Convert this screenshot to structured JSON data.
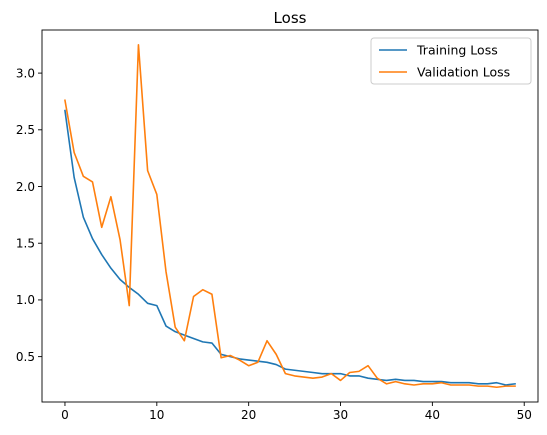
{
  "chart_data": {
    "type": "line",
    "title": "Loss",
    "xlabel": "",
    "ylabel": "",
    "xlim": [
      -2.5,
      51.5
    ],
    "ylim": [
      0.1,
      3.38
    ],
    "xticks": [
      0,
      10,
      20,
      30,
      40,
      50
    ],
    "yticks": [
      0.5,
      1.0,
      1.5,
      2.0,
      2.5,
      3.0
    ],
    "ytick_labels": [
      "0.5",
      "1.0",
      "1.5",
      "2.0",
      "2.5",
      "3.0"
    ],
    "grid": false,
    "legend": "top-right",
    "x": [
      0,
      1,
      2,
      3,
      4,
      5,
      6,
      7,
      8,
      9,
      10,
      11,
      12,
      13,
      14,
      15,
      16,
      17,
      18,
      19,
      20,
      21,
      22,
      23,
      24,
      25,
      26,
      27,
      28,
      29,
      30,
      31,
      32,
      33,
      34,
      35,
      36,
      37,
      38,
      39,
      40,
      41,
      42,
      43,
      44,
      45,
      46,
      47,
      48,
      49
    ],
    "series": [
      {
        "name": "Training Loss",
        "color": "#1f77b4",
        "values": [
          2.67,
          2.08,
          1.73,
          1.54,
          1.4,
          1.28,
          1.18,
          1.11,
          1.05,
          0.97,
          0.95,
          0.77,
          0.72,
          0.69,
          0.66,
          0.63,
          0.62,
          0.52,
          0.5,
          0.48,
          0.47,
          0.46,
          0.45,
          0.43,
          0.39,
          0.38,
          0.37,
          0.36,
          0.35,
          0.35,
          0.35,
          0.33,
          0.33,
          0.31,
          0.3,
          0.29,
          0.3,
          0.29,
          0.29,
          0.28,
          0.28,
          0.28,
          0.27,
          0.27,
          0.27,
          0.26,
          0.26,
          0.27,
          0.25,
          0.26
        ]
      },
      {
        "name": "Validation Loss",
        "color": "#ff7f0e",
        "values": [
          2.76,
          2.3,
          2.09,
          2.04,
          1.64,
          1.91,
          1.53,
          0.95,
          3.25,
          2.14,
          1.93,
          1.25,
          0.76,
          0.64,
          1.03,
          1.09,
          1.05,
          0.49,
          0.51,
          0.47,
          0.42,
          0.45,
          0.64,
          0.52,
          0.35,
          0.33,
          0.32,
          0.31,
          0.32,
          0.35,
          0.29,
          0.36,
          0.37,
          0.42,
          0.31,
          0.26,
          0.28,
          0.26,
          0.25,
          0.26,
          0.26,
          0.27,
          0.25,
          0.25,
          0.25,
          0.24,
          0.24,
          0.23,
          0.24,
          0.24
        ]
      }
    ]
  }
}
